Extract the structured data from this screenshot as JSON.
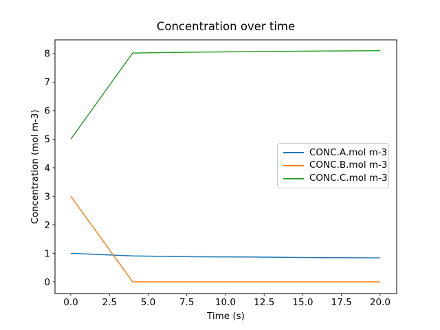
{
  "figure": {
    "background_color": "#ffffff",
    "axis_color": "#000000",
    "text_color": "#000000",
    "legend_border_color": "#cccccc"
  },
  "chart_data": {
    "type": "line",
    "title": "Concentration over time",
    "xlabel": "Time (s)",
    "ylabel": "Concentration (mol m-3)",
    "x": [
      0,
      4,
      8,
      12,
      16,
      20
    ],
    "series": [
      {
        "name": "CONC.A.mol m-3",
        "color": "#1f77b4",
        "values": [
          1.0,
          0.91,
          0.88,
          0.87,
          0.85,
          0.84
        ]
      },
      {
        "name": "CONC.B.mol m-3",
        "color": "#ff7f0e",
        "values": [
          3.0,
          0.0,
          0.0,
          0.0,
          0.0,
          0.0
        ]
      },
      {
        "name": "CONC.C.mol m-3",
        "color": "#2ca02c",
        "values": [
          5.0,
          8.02,
          8.05,
          8.07,
          8.09,
          8.1
        ]
      }
    ],
    "xlim": [
      -1.02,
      21.07
    ],
    "ylim": [
      -0.41,
      8.48
    ],
    "x_ticks": {
      "values": [
        0,
        2.5,
        5,
        7.5,
        10,
        12.5,
        15,
        17.5,
        20
      ],
      "labels": [
        "0.0",
        "2.5",
        "5.0",
        "7.5",
        "10.0",
        "12.5",
        "15.0",
        "17.5",
        "20.0"
      ]
    },
    "y_ticks": {
      "values": [
        0,
        1,
        2,
        3,
        4,
        5,
        6,
        7,
        8
      ],
      "labels": [
        "0",
        "1",
        "2",
        "3",
        "4",
        "5",
        "6",
        "7",
        "8"
      ]
    },
    "grid": false,
    "legend_position": "center right"
  }
}
